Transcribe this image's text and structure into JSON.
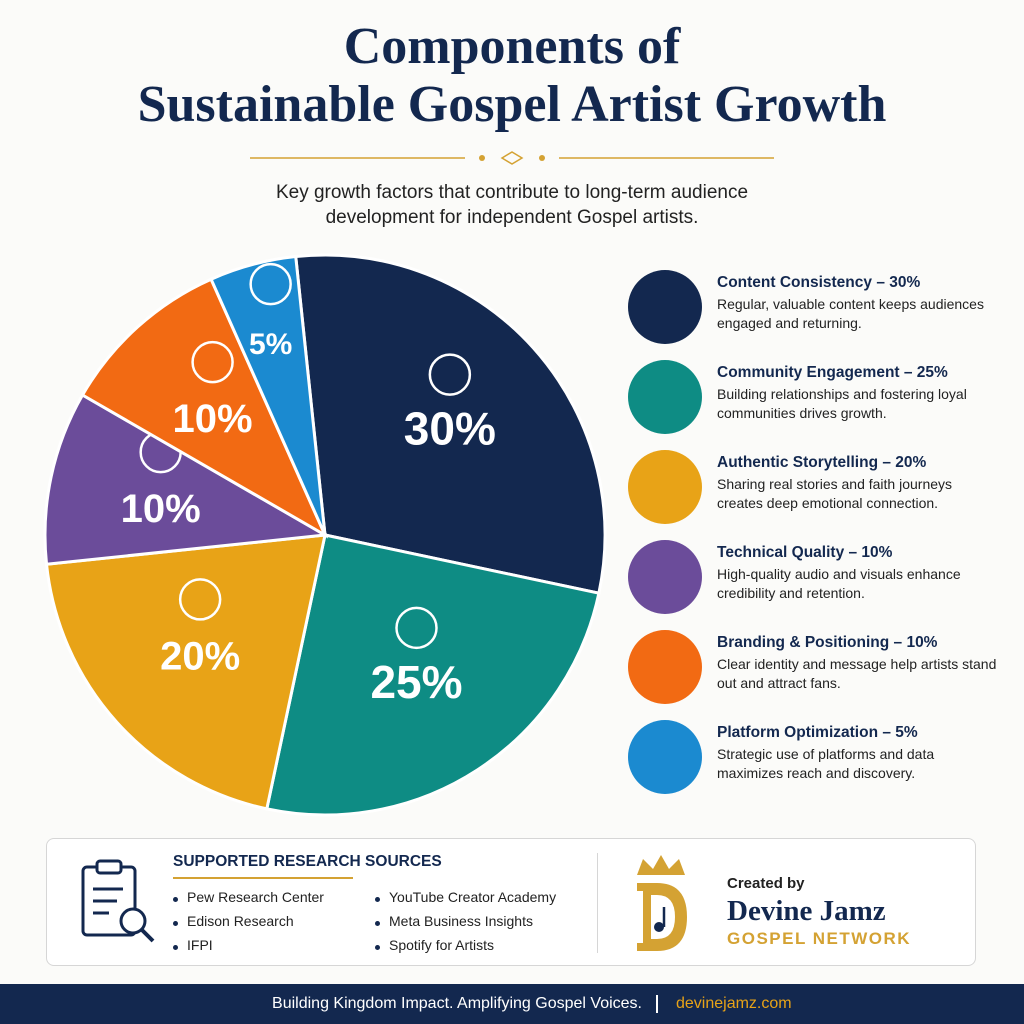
{
  "chart_data": {
    "type": "pie",
    "title": [
      "Components of",
      "Sustainable Gospel Artist Growth"
    ],
    "subtitle": "Key growth factors that contribute to long-term audience development for independent Gospel artists.",
    "categories": [
      "Content Consistency – 30%",
      "Community Engagement – 25%",
      "Authentic Storytelling – 20%",
      "Technical Quality – 10%",
      "Branding & Positioning – 10%",
      "Platform Optimization – 5%"
    ],
    "values": [
      30,
      25,
      20,
      10,
      10,
      5
    ],
    "value_labels": [
      "30%",
      "25%",
      "20%",
      "10%",
      "10%",
      "5%"
    ],
    "descriptions": [
      "Regular, valuable content keeps audiences engaged and returning.",
      "Building relationships and fostering loyal communities drives growth.",
      "Sharing real stories and faith journeys creates deep emotional connection.",
      "High-quality audio and visuals enhance credibility and retention.",
      "Clear identity and message help artists stand out and attract fans.",
      "Strategic use of platforms and data maximizes reach and discovery."
    ],
    "colors": [
      "#13284f",
      "#0e8c84",
      "#e8a317",
      "#6b4c9a",
      "#f26a13",
      "#1b8ad0"
    ],
    "legend": "right"
  },
  "sources": {
    "title": "SUPPORTED RESEARCH SOURCES",
    "items": [
      "Pew Research Center",
      "Edison Research",
      "IFPI",
      "YouTube Creator Academy",
      "Meta Business Insights",
      "Spotify for Artists"
    ]
  },
  "brand": {
    "created_by": "Created by",
    "name": "Devine Jamz",
    "network": "GOSPEL NETWORK"
  },
  "footer": {
    "tagline": "Building Kingdom Impact. Amplifying Gospel Voices.",
    "url": "devinejamz.com"
  }
}
